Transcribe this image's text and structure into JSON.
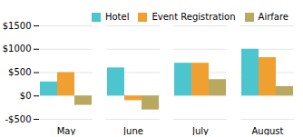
{
  "chart_data": {
    "type": "bar",
    "categories": [
      "May",
      "June",
      "July",
      "August"
    ],
    "series": [
      {
        "name": "Hotel",
        "color": "#4DC5CE",
        "values": [
          300,
          600,
          700,
          1000
        ]
      },
      {
        "name": "Event Registration",
        "color": "#F0A030",
        "values": [
          500,
          -100,
          700,
          820
        ]
      },
      {
        "name": "Airfare",
        "color": "#B8A860",
        "values": [
          -200,
          -300,
          350,
          200
        ]
      }
    ],
    "ylim": [
      -500,
      1500
    ],
    "yticks": [
      {
        "value": -500,
        "label": "-$500"
      },
      {
        "value": 0,
        "label": "$0"
      },
      {
        "value": 500,
        "label": "$500"
      },
      {
        "value": 1000,
        "label": "$1000"
      },
      {
        "value": 1500,
        "label": "$1500"
      }
    ],
    "grid": true,
    "legend": "upper right"
  }
}
